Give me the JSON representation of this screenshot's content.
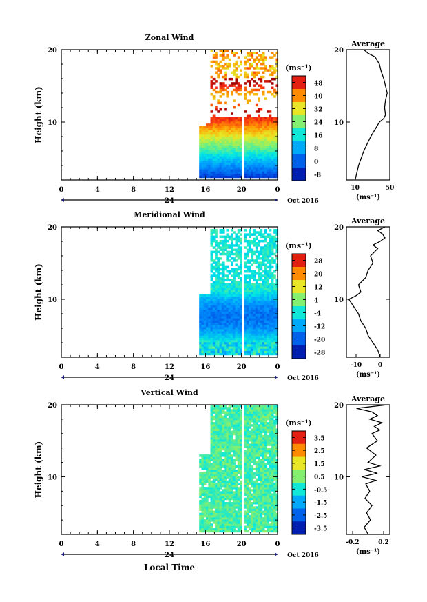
{
  "chart_data": [
    {
      "type": "heatmap",
      "title": "Zonal Wind",
      "ylabel": "Height (km)",
      "ylim": [
        2,
        20
      ],
      "yticks": [
        "10",
        "20"
      ],
      "xticks": [
        "0",
        "4",
        "8",
        "12",
        "16",
        "20",
        "0"
      ],
      "day_label": "24",
      "month_label": "Oct 2016",
      "unit_label": "(ms⁻¹)",
      "colorbar": {
        "ticks": [
          "48",
          "40",
          "32",
          "24",
          "16",
          "8",
          "0",
          "-8"
        ],
        "range": [
          -12,
          52
        ]
      },
      "profile": {
        "title": "Average",
        "xticks": [
          "10",
          "50"
        ],
        "xrange": [
          0,
          50
        ],
        "xlabel": "(ms⁻¹)",
        "yticks": [
          "10",
          "20"
        ],
        "points": [
          [
            10,
            2
          ],
          [
            12,
            3
          ],
          [
            14,
            4
          ],
          [
            17,
            5
          ],
          [
            20,
            6
          ],
          [
            24,
            7
          ],
          [
            28,
            8
          ],
          [
            33,
            9
          ],
          [
            38,
            10
          ],
          [
            43,
            10.5
          ],
          [
            45,
            11
          ],
          [
            44,
            12
          ],
          [
            45,
            13
          ],
          [
            47,
            14
          ],
          [
            45,
            15
          ],
          [
            43,
            16
          ],
          [
            40,
            17
          ],
          [
            38,
            18
          ],
          [
            33,
            19
          ],
          [
            25,
            19.5
          ],
          [
            20,
            20
          ]
        ]
      },
      "data_coverage": {
        "start_hour": 15.3,
        "gap_hours": [
          20.0,
          20.3
        ],
        "top_km": [
          20,
          20,
          19.5
        ]
      }
    },
    {
      "type": "heatmap",
      "title": "Meridional Wind",
      "ylabel": "Height (km)",
      "ylim": [
        2,
        20
      ],
      "yticks": [
        "10",
        "20"
      ],
      "xticks": [
        "0",
        "4",
        "8",
        "12",
        "16",
        "20",
        "0"
      ],
      "day_label": "24",
      "month_label": "Oct 2016",
      "unit_label": "(ms⁻¹)",
      "colorbar": {
        "ticks": [
          "28",
          "20",
          "12",
          "4",
          "-4",
          "-12",
          "-20",
          "-28"
        ],
        "range": [
          -32,
          32
        ]
      },
      "profile": {
        "title": "Average",
        "xticks": [
          "-10",
          "0"
        ],
        "xrange": [
          -14,
          4
        ],
        "xlabel": "(ms⁻¹)",
        "yticks": [
          "10",
          "20"
        ],
        "points": [
          [
            0,
            2
          ],
          [
            -1,
            3
          ],
          [
            -2,
            3.5
          ],
          [
            -3,
            4
          ],
          [
            -5,
            5
          ],
          [
            -6,
            6
          ],
          [
            -8,
            7
          ],
          [
            -9,
            8
          ],
          [
            -11,
            9
          ],
          [
            -13,
            10
          ],
          [
            -10,
            10.5
          ],
          [
            -8,
            11
          ],
          [
            -9,
            12
          ],
          [
            -6,
            13
          ],
          [
            -5,
            14
          ],
          [
            -3,
            15
          ],
          [
            -4,
            16
          ],
          [
            -1,
            17
          ],
          [
            -3,
            17.5
          ],
          [
            0,
            18
          ],
          [
            2,
            18.5
          ],
          [
            1,
            19
          ],
          [
            -1,
            19.5
          ],
          [
            2,
            20
          ]
        ]
      },
      "data_coverage": {
        "start_hour": 15.3,
        "gap_hours": [
          20.0,
          20.3
        ],
        "top_km": [
          19.5,
          19.5,
          19.5
        ]
      }
    },
    {
      "type": "heatmap",
      "title": "Vertical Wind",
      "ylabel": "Height (km)",
      "ylim": [
        2,
        20
      ],
      "yticks": [
        "10",
        "20"
      ],
      "xticks": [
        "0",
        "4",
        "8",
        "12",
        "16",
        "20",
        "0"
      ],
      "day_label": "24",
      "month_label": "Oct 2016",
      "unit_label": "(ms⁻¹)",
      "xlabel": "Local Time",
      "colorbar": {
        "ticks": [
          "3.5",
          "2.5",
          "1.5",
          "0.5",
          "-0.5",
          "-1.5",
          "-2.5",
          "-3.5"
        ],
        "range": [
          -4,
          4
        ]
      },
      "profile": {
        "title": "Average",
        "xticks": [
          "-0.2",
          "0.2"
        ],
        "xrange": [
          -0.28,
          0.28
        ],
        "xlabel": "(ms⁻¹)",
        "yticks": [
          "10",
          "20"
        ],
        "points": [
          [
            0.0,
            2
          ],
          [
            -0.05,
            3
          ],
          [
            0.03,
            4
          ],
          [
            -0.02,
            5
          ],
          [
            0.05,
            6
          ],
          [
            -0.04,
            7
          ],
          [
            0.02,
            8
          ],
          [
            -0.03,
            9
          ],
          [
            0.1,
            9.5
          ],
          [
            -0.08,
            10
          ],
          [
            0.12,
            10.5
          ],
          [
            -0.05,
            11
          ],
          [
            0.15,
            11.5
          ],
          [
            0.0,
            12
          ],
          [
            0.1,
            13
          ],
          [
            -0.02,
            14
          ],
          [
            0.12,
            15
          ],
          [
            0.05,
            16
          ],
          [
            0.15,
            16.5
          ],
          [
            0.08,
            17
          ],
          [
            0.18,
            17.5
          ],
          [
            0.02,
            18
          ],
          [
            0.12,
            18.5
          ],
          [
            0.05,
            19
          ],
          [
            -0.15,
            19.5
          ],
          [
            0.25,
            20
          ]
        ]
      },
      "data_coverage": {
        "start_hour": 15.3,
        "gap_hours": [
          20.0,
          20.3
        ],
        "top_km": [
          20,
          20,
          20
        ]
      }
    }
  ]
}
